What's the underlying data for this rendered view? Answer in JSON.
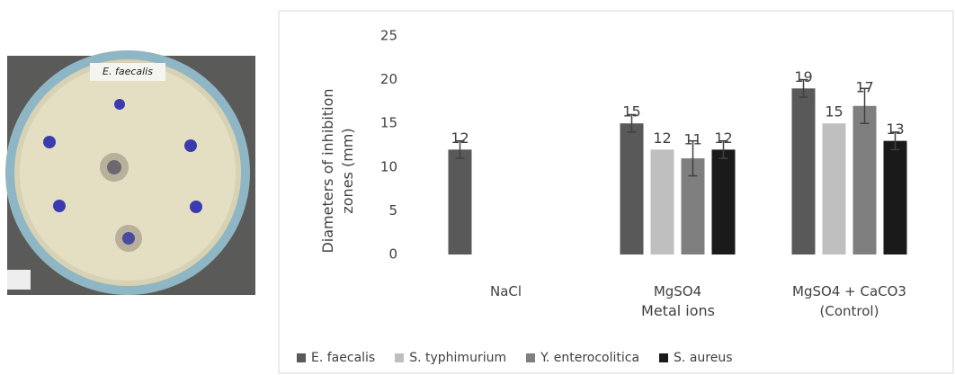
{
  "photo": {
    "label": "E. faecalis"
  },
  "chart_data": {
    "type": "bar",
    "y_label": "Diameters of inhibition zones (mm)",
    "x_label": "Metal ions",
    "categories": [
      "NaCl",
      "MgSO4",
      "MgSO4 + CaCO3 (Control)"
    ],
    "series": [
      {
        "name": "E. faecalis",
        "color": "#595959",
        "values": [
          12,
          15,
          19
        ],
        "errors": [
          1,
          1,
          1
        ]
      },
      {
        "name": "S. typhimurium",
        "color": "#bfbfbf",
        "values": [
          null,
          12,
          15
        ]
      },
      {
        "name": "Y. enterocolitica",
        "color": "#7f7f7f",
        "values": [
          null,
          11,
          17
        ],
        "errors": [
          null,
          2,
          2
        ]
      },
      {
        "name": "S. aureus",
        "color": "#1a1a1a",
        "values": [
          null,
          12,
          13
        ],
        "errors": [
          null,
          1,
          1
        ]
      }
    ],
    "ylim": [
      0,
      25
    ],
    "yticks": [
      0,
      5,
      10,
      15,
      20,
      25
    ],
    "grid": false,
    "legend": "bottom"
  }
}
